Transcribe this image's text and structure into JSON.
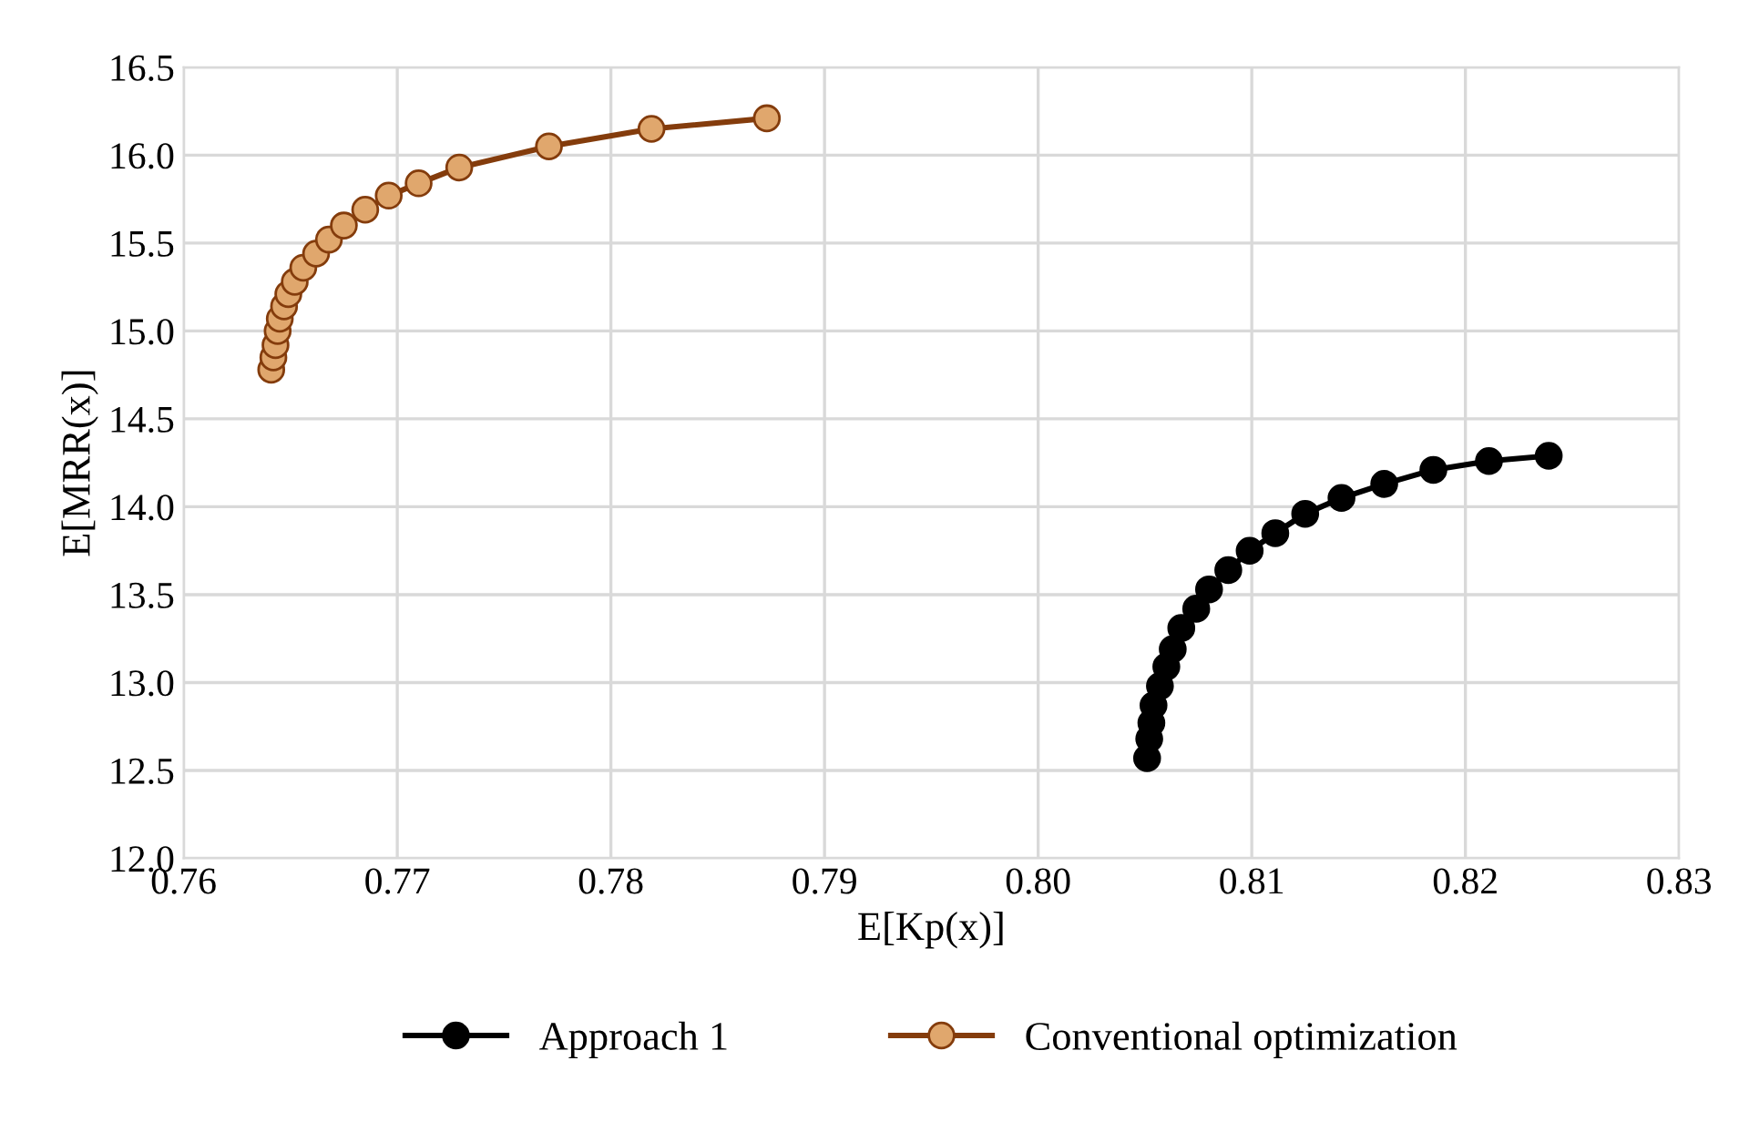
{
  "chart_data": {
    "type": "line",
    "xlabel": "E[Kp(x)]",
    "ylabel": "E[MRR(x)]",
    "xlim": [
      0.76,
      0.83
    ],
    "xticks": [
      {
        "value": 0.76,
        "label": "0.76"
      },
      {
        "value": 0.77,
        "label": "0.77"
      },
      {
        "value": 0.78,
        "label": "0.78"
      },
      {
        "value": 0.79,
        "label": "0.79"
      },
      {
        "value": 0.8,
        "label": "0.80"
      },
      {
        "value": 0.81,
        "label": "0.81"
      },
      {
        "value": 0.82,
        "label": "0.82"
      },
      {
        "value": 0.83,
        "label": "0.83"
      }
    ],
    "ylim": [
      12.0,
      16.5
    ],
    "yticks": [
      {
        "value": 12.0,
        "label": "12.0"
      },
      {
        "value": 12.5,
        "label": "12.5"
      },
      {
        "value": 13.0,
        "label": "13.0"
      },
      {
        "value": 13.5,
        "label": "13.5"
      },
      {
        "value": 14.0,
        "label": "14.0"
      },
      {
        "value": 14.5,
        "label": "14.5"
      },
      {
        "value": 15.0,
        "label": "15.0"
      },
      {
        "value": 15.5,
        "label": "15.5"
      },
      {
        "value": 16.0,
        "label": "16.0"
      },
      {
        "value": 16.5,
        "label": "16.5"
      }
    ],
    "grid": true,
    "legend": "bottom",
    "marker": "circle",
    "line_style": "solid",
    "series": [
      {
        "name": "Approach 1",
        "color": "#000000",
        "x": [
          0.8051,
          0.8052,
          0.8053,
          0.8054,
          0.8057,
          0.806,
          0.8063,
          0.8067,
          0.8074,
          0.808,
          0.8089,
          0.8099,
          0.8111,
          0.8125,
          0.8142,
          0.8162,
          0.8185,
          0.8211,
          0.8239
        ],
        "values": [
          12.57,
          12.68,
          12.77,
          12.87,
          12.98,
          13.09,
          13.19,
          13.31,
          13.42,
          13.53,
          13.64,
          13.75,
          13.85,
          13.96,
          14.05,
          14.13,
          14.21,
          14.26,
          14.29
        ]
      },
      {
        "name": "Conventional optimization",
        "color": "#843c0c",
        "x": [
          0.7641,
          0.7642,
          0.7643,
          0.7644,
          0.7645,
          0.7647,
          0.7649,
          0.7652,
          0.7656,
          0.7662,
          0.7668,
          0.7675,
          0.7685,
          0.7696,
          0.771,
          0.7729,
          0.7771,
          0.7819,
          0.7873
        ],
        "values": [
          14.78,
          14.85,
          14.92,
          15.0,
          15.07,
          15.14,
          15.21,
          15.28,
          15.36,
          15.44,
          15.52,
          15.6,
          15.69,
          15.77,
          15.84,
          15.93,
          16.05,
          16.15,
          16.21
        ]
      }
    ]
  }
}
